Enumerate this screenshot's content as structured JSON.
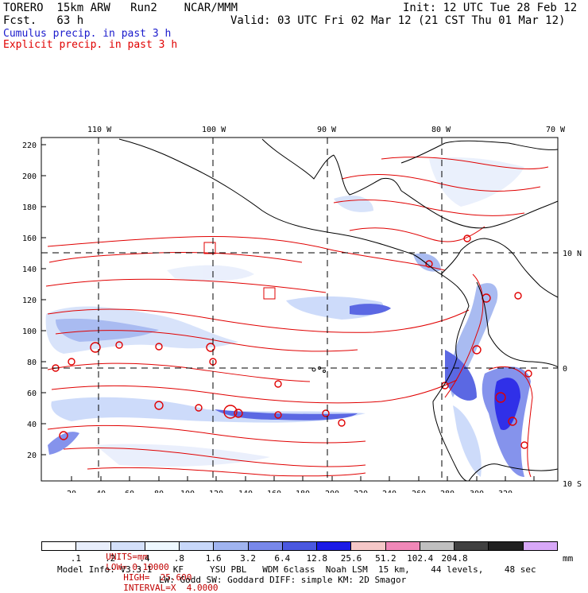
{
  "header": {
    "model": "TORERO  15km ARW   Run2    NCAR/MMM",
    "fcst": "Fcst.   63 h",
    "init": "Init: 12 UTC Tue 28 Feb 12",
    "valid": "Valid: 03 UTC Fri 02 Mar 12 (21 CST Thu 01 Mar 12)"
  },
  "legend": {
    "cumulus": "Cumulus precip. in past 3 h",
    "cumulus_color": "#1a1acc",
    "explicit": "Explicit precip. in past 3 h",
    "explicit_color": "#e00000"
  },
  "axes": {
    "top_lon": [
      "110 W",
      "100 W",
      "90 W",
      "80 W",
      "70 W"
    ],
    "right_lat": [
      "10 N",
      "0",
      "10 S"
    ],
    "left_y": [
      "220",
      "200",
      "180",
      "160",
      "140",
      "120",
      "100",
      "80",
      "60",
      "40",
      "20"
    ],
    "bottom_x": [
      "20",
      "40",
      "60",
      "80",
      "100",
      "120",
      "140",
      "160",
      "180",
      "200",
      "220",
      "240",
      "260",
      "280",
      "300",
      "320"
    ]
  },
  "contour_info": {
    "label": "CONTOURS:",
    "units": "UNITS=mm",
    "low": "LOW= 0.10000",
    "high": "HIGH=  25.600",
    "interval": "INTERVAL=X  4.0000"
  },
  "colorbar": {
    "colors": [
      "#ffffff",
      "#e8eefc",
      "#d4e0fa",
      "#eef8ff",
      "#c8d8fa",
      "#a0b4f0",
      "#7888ea",
      "#4a58e0",
      "#1a1ae6",
      "#f6c8c8",
      "#f088b8",
      "#c0c0c0",
      "#404040",
      "#202020",
      "#d8a8f8"
    ],
    "labels": [
      ".1",
      ".2",
      ".4",
      ".8",
      "1.6",
      "3.2",
      "6.4",
      "12.8",
      "25.6",
      "51.2",
      "102.4",
      "204.8"
    ],
    "unit": "mm"
  },
  "footer": {
    "line1": "Model Info: V3.3.1    KF     YSU PBL   WDM 6class  Noah LSM  15 km,    44 levels,    48 sec",
    "line2": "LW: Godd SW: Goddard DIFF: simple KM: 2D Smagor"
  }
}
